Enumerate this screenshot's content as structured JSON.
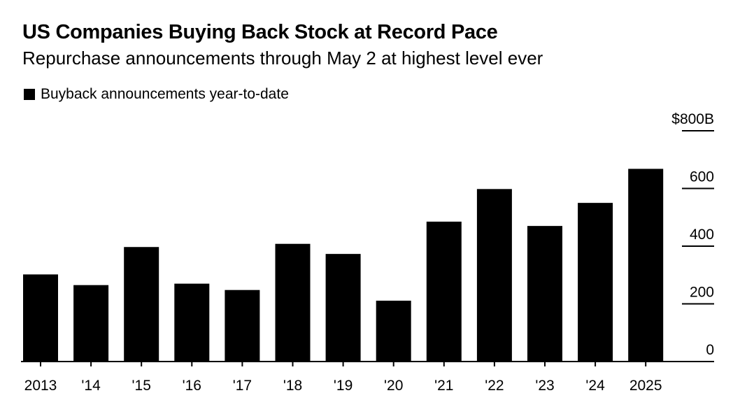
{
  "title": "US Companies Buying Back Stock at Record Pace",
  "subtitle": "Repurchase announcements through May 2 at highest level ever",
  "legend": {
    "label": "Buyback announcements year-to-date",
    "color": "#000000"
  },
  "chart_data": {
    "type": "bar",
    "categories": [
      "2013",
      "'14",
      "'15",
      "'16",
      "'17",
      "'18",
      "'19",
      "'20",
      "'21",
      "'22",
      "'23",
      "'24",
      "2025"
    ],
    "series": [
      {
        "name": "Buyback announcements year-to-date",
        "values": [
          302,
          265,
          397,
          270,
          248,
          408,
          373,
          211,
          485,
          598,
          470,
          550,
          668
        ]
      }
    ],
    "y_axis": {
      "min": 0,
      "max": 800,
      "ticks": [
        0,
        200,
        400,
        600,
        800
      ],
      "tick_labels": [
        "0",
        "200",
        "400",
        "600",
        "$800B"
      ],
      "position": "right"
    },
    "title": "US Companies Buying Back Stock at Record Pace",
    "subtitle": "Repurchase announcements through May 2 at highest level ever",
    "grid": false,
    "legend_position": "top-left",
    "bar_color": "#000000"
  }
}
